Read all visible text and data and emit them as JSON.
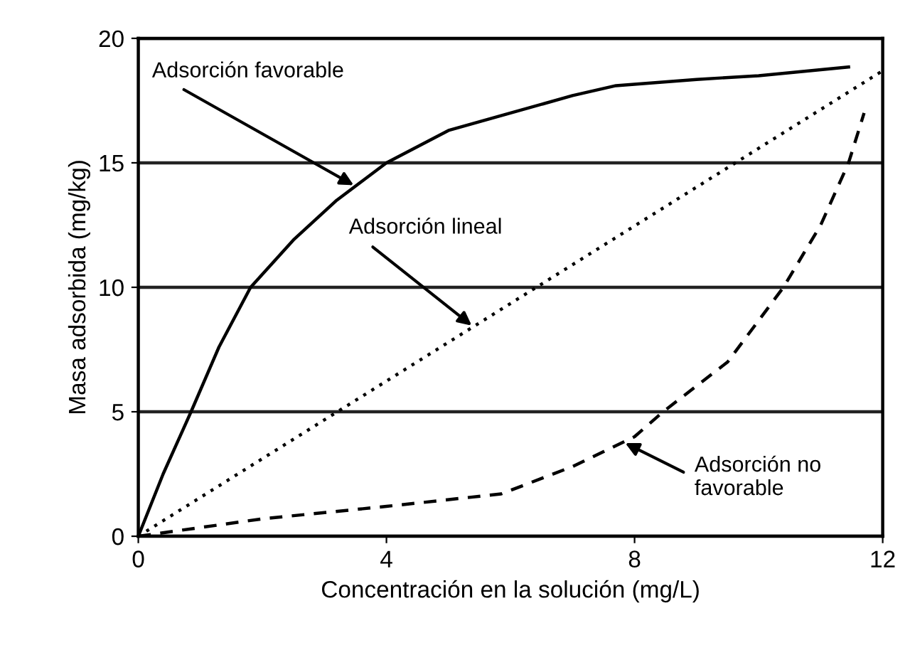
{
  "chart_data": {
    "type": "line",
    "xlabel": "Concentración en la solución (mg/L)",
    "ylabel": "Masa adsorbida (mg/kg)",
    "xlim": [
      0,
      12
    ],
    "xticks": [
      0,
      4,
      8,
      12
    ],
    "ylim": [
      0,
      20
    ],
    "yticks": [
      0,
      5,
      10,
      15,
      20
    ],
    "grid": "y",
    "legend": false,
    "marker": "none",
    "series": [
      {
        "color": "#000000",
        "line_style": "solid",
        "x": [
          0,
          0.4,
          0.85,
          1.3,
          1.81,
          2.5,
          3.2,
          4.0,
          5.0,
          6.0,
          7.0,
          7.7,
          9.0,
          10.0,
          11.45
        ],
        "values": [
          0,
          2.5,
          5,
          7.6,
          10,
          11.9,
          13.5,
          15,
          16.3,
          17.0,
          17.7,
          18.1,
          18.35,
          18.5,
          18.85
        ]
      },
      {
        "color": "#000000",
        "line_style": "dotted",
        "x": [
          0,
          12
        ],
        "values": [
          0,
          18.7
        ]
      },
      {
        "color": "#000000",
        "line_style": "dashed",
        "x": [
          0,
          2,
          4,
          5.85,
          7,
          8,
          8.46,
          9.5,
          10.4,
          11,
          11.45,
          11.7
        ],
        "values": [
          0,
          0.7,
          1.2,
          1.7,
          2.8,
          4,
          5,
          7,
          10,
          12.5,
          15,
          17
        ]
      }
    ],
    "annotations": [
      {
        "text": "Adsorción favorable",
        "x": 3.5,
        "y": 14.06
      },
      {
        "text": "Adsorción lineal",
        "x": 5.4,
        "y": 8.415
      },
      {
        "text": "Adsorción no\nfavorable",
        "x": 7.82,
        "y": 3.78
      }
    ]
  }
}
